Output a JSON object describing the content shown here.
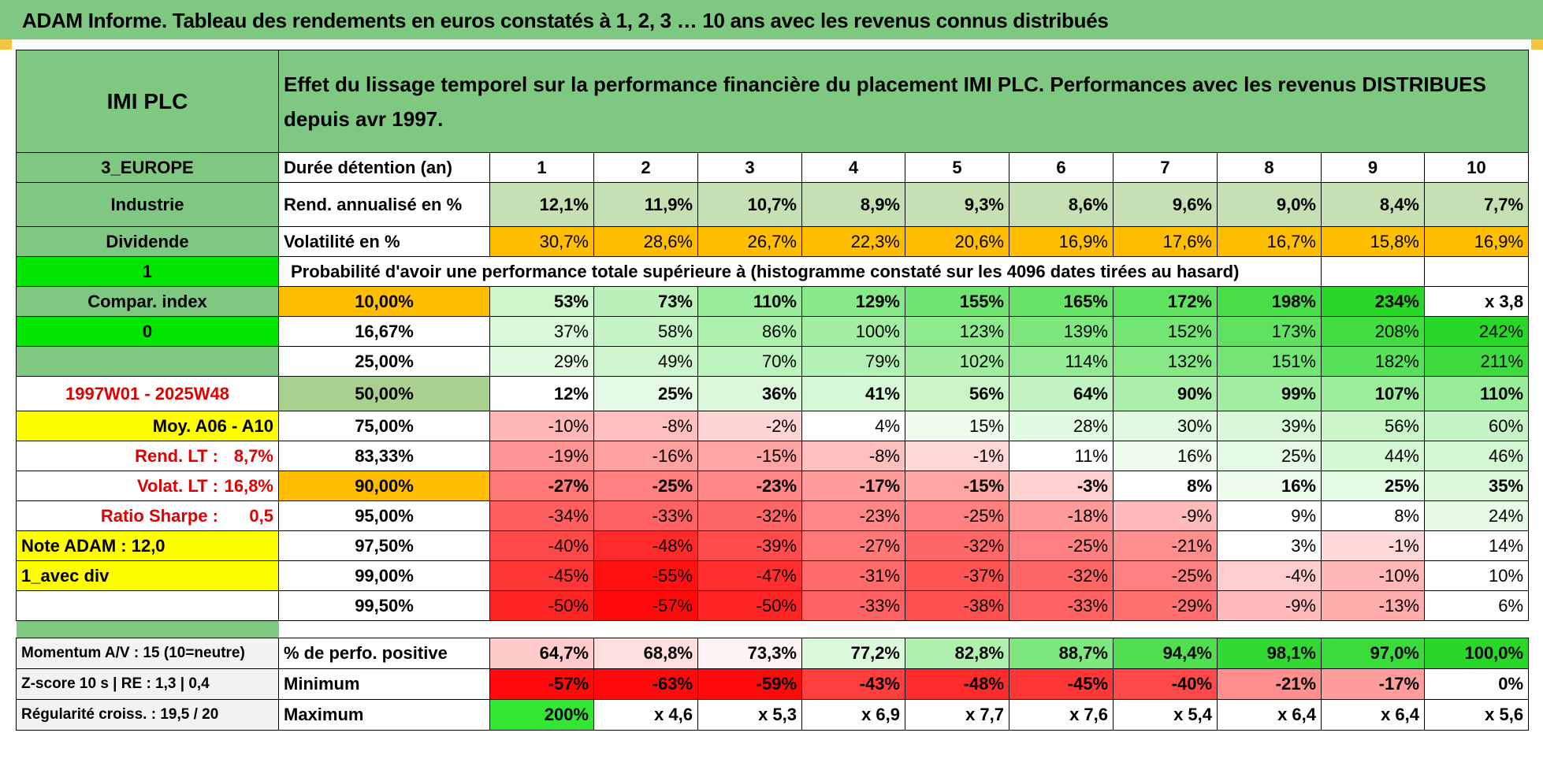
{
  "title": "ADAM Informe. Tableau des rendements en euros constatés à 1, 2, 3 … 10 ans avec les revenus connus distribués",
  "header": {
    "name": "IMI PLC",
    "description": "Effet du lissage temporel sur la performance financière du placement IMI PLC. Performances avec les revenus DISTRIBUES depuis avr 1997."
  },
  "years_label": "Durée détention (an)",
  "years": [
    "1",
    "2",
    "3",
    "4",
    "5",
    "6",
    "7",
    "8",
    "9",
    "10"
  ],
  "rend": {
    "label": "Rend. annualisé en %",
    "values": [
      "12,1%",
      "11,9%",
      "10,7%",
      "8,9%",
      "9,3%",
      "8,6%",
      "9,6%",
      "9,0%",
      "8,4%",
      "7,7%"
    ]
  },
  "vol": {
    "label": "Volatilité en %",
    "values": [
      "30,7%",
      "28,6%",
      "26,7%",
      "22,3%",
      "20,6%",
      "16,9%",
      "17,6%",
      "16,7%",
      "15,8%",
      "16,9%"
    ]
  },
  "prob_title": "Probabilité d'avoir une performance totale supérieure à (histogramme constaté sur les 4096 dates tirées au hasard)",
  "sidebar": {
    "region": "3_EUROPE",
    "sector": "Industrie",
    "type": "Dividende",
    "flag1": "1",
    "compar": "Compar. index",
    "flag0": "0",
    "period": "1997W01 - 2025W48",
    "moy": "Moy. A06 - A10",
    "rend_lt_label": "Rend. LT :",
    "rend_lt_value": "8,7%",
    "volat_lt_label": "Volat. LT :",
    "volat_lt_value": "16,8%",
    "sharpe_label": "Ratio Sharpe :",
    "sharpe_value": "0,5",
    "note": "Note ADAM : 12,0",
    "div": "1_avec div"
  },
  "quantiles": [
    {
      "label": "10,00%",
      "values": [
        "53%",
        "73%",
        "110%",
        "129%",
        "155%",
        "165%",
        "172%",
        "198%",
        "234%",
        "x 3,8"
      ]
    },
    {
      "label": "16,67%",
      "values": [
        "37%",
        "58%",
        "86%",
        "100%",
        "123%",
        "139%",
        "152%",
        "173%",
        "208%",
        "242%"
      ]
    },
    {
      "label": "25,00%",
      "values": [
        "29%",
        "49%",
        "70%",
        "79%",
        "102%",
        "114%",
        "132%",
        "151%",
        "182%",
        "211%"
      ]
    },
    {
      "label": "50,00%",
      "values": [
        "12%",
        "25%",
        "36%",
        "41%",
        "56%",
        "64%",
        "90%",
        "99%",
        "107%",
        "110%"
      ]
    },
    {
      "label": "75,00%",
      "values": [
        "-10%",
        "-8%",
        "-2%",
        "4%",
        "15%",
        "28%",
        "30%",
        "39%",
        "56%",
        "60%"
      ]
    },
    {
      "label": "83,33%",
      "values": [
        "-19%",
        "-16%",
        "-15%",
        "-8%",
        "-1%",
        "11%",
        "16%",
        "25%",
        "44%",
        "46%"
      ]
    },
    {
      "label": "90,00%",
      "values": [
        "-27%",
        "-25%",
        "-23%",
        "-17%",
        "-15%",
        "-3%",
        "8%",
        "16%",
        "25%",
        "35%"
      ]
    },
    {
      "label": "95,00%",
      "values": [
        "-34%",
        "-33%",
        "-32%",
        "-23%",
        "-25%",
        "-18%",
        "-9%",
        "9%",
        "8%",
        "24%"
      ]
    },
    {
      "label": "97,50%",
      "values": [
        "-40%",
        "-48%",
        "-39%",
        "-27%",
        "-32%",
        "-25%",
        "-21%",
        "3%",
        "-1%",
        "14%"
      ]
    },
    {
      "label": "99,00%",
      "values": [
        "-45%",
        "-55%",
        "-47%",
        "-31%",
        "-37%",
        "-32%",
        "-25%",
        "-4%",
        "-10%",
        "10%"
      ]
    },
    {
      "label": "99,50%",
      "values": [
        "-50%",
        "-57%",
        "-50%",
        "-33%",
        "-38%",
        "-33%",
        "-29%",
        "-9%",
        "-13%",
        "6%"
      ]
    }
  ],
  "bottom": [
    {
      "side": "Momentum A/V : 15 (10=neutre)",
      "label": "% de perfo. positive",
      "values": [
        "64,7%",
        "68,8%",
        "73,3%",
        "77,2%",
        "82,8%",
        "88,7%",
        "94,4%",
        "98,1%",
        "97,0%",
        "100,0%"
      ]
    },
    {
      "side": "Z-score 10 s | RE : 1,3 | 0,4",
      "label": "Minimum",
      "values": [
        "-57%",
        "-63%",
        "-59%",
        "-43%",
        "-48%",
        "-45%",
        "-40%",
        "-21%",
        "-17%",
        "0%"
      ]
    },
    {
      "side": "Régularité croiss. : 19,5 / 20",
      "label": "Maximum",
      "values": [
        "200%",
        "x 4,6",
        "x 5,3",
        "x 6,9",
        "x 7,7",
        "x 7,6",
        "x 5,4",
        "x 6,4",
        "x 6,4",
        "x 5,6"
      ]
    }
  ],
  "colors": {
    "header_green": "#7fc882",
    "bright_green": "#00e600",
    "yellow": "#ffff00",
    "orange": "#ffbf00",
    "label_red": "#e00000",
    "rend_green": "#c6e0b4"
  }
}
